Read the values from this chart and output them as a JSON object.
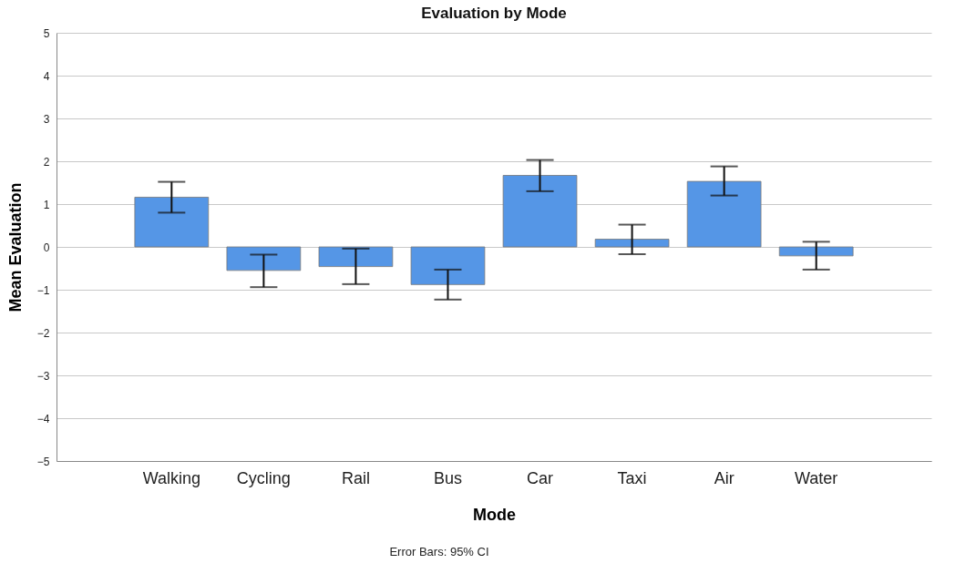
{
  "chart_data": {
    "type": "bar",
    "title": "Evaluation by Mode",
    "xlabel": "Mode",
    "ylabel": "Mean Evaluation",
    "categories": [
      "Walking",
      "Cycling",
      "Rail",
      "Bus",
      "Car",
      "Taxi",
      "Air",
      "Water"
    ],
    "values": [
      1.16,
      -0.55,
      -0.46,
      -0.88,
      1.67,
      0.18,
      1.53,
      -0.21
    ],
    "errors": [
      [
        0.8,
        1.52
      ],
      [
        -0.94,
        -0.18
      ],
      [
        -0.87,
        -0.04
      ],
      [
        -1.23,
        -0.53
      ],
      [
        1.3,
        2.03
      ],
      [
        -0.17,
        0.52
      ],
      [
        1.2,
        1.88
      ],
      [
        -0.53,
        0.12
      ]
    ],
    "color": "#5596e6",
    "ylim": [
      -5,
      5
    ],
    "yticks": [
      -5,
      -4,
      -3,
      -2,
      -1,
      0,
      1,
      2,
      3,
      4,
      5
    ],
    "grid": "y",
    "annotations": [
      "Error Bars: 95% CI"
    ]
  }
}
